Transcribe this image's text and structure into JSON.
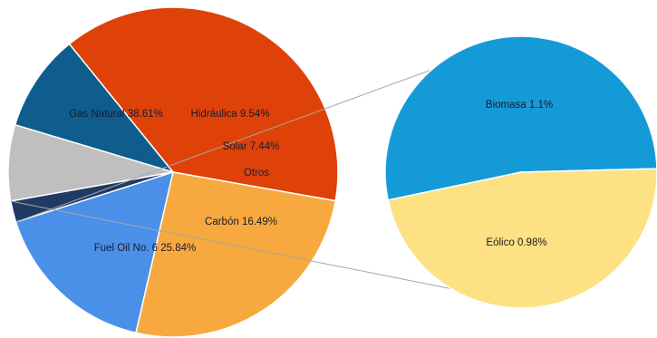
{
  "chart_data": [
    {
      "type": "pie",
      "title": "",
      "slices": [
        {
          "label": "Gas Natural 38.61%",
          "name": "Gas Natural",
          "value": 38.61,
          "color": "#df4208"
        },
        {
          "label": "Hidráulica 9.54%",
          "name": "Hidráulica",
          "value": 9.54,
          "color": "#0f5d8c"
        },
        {
          "label": "Solar 7.44%",
          "name": "Solar",
          "value": 7.44,
          "color": "#bfbfbf"
        },
        {
          "label": "Otros",
          "name": "Otros",
          "value": 2.08,
          "color": "#1f3a63"
        },
        {
          "label": "Carbón 16.49%",
          "name": "Carbón",
          "value": 16.49,
          "color": "#4a90e8"
        },
        {
          "label": "Fuel Oil No. 6 25.84%",
          "name": "Fuel Oil No. 6",
          "value": 25.84,
          "color": "#f7a93f"
        }
      ]
    },
    {
      "type": "pie",
      "title": "",
      "breakdown_of": "Otros",
      "slices": [
        {
          "label": "Biomasa 1.1%",
          "name": "Biomasa",
          "value": 1.1,
          "color": "#159ad8"
        },
        {
          "label": "Eólico 0.98%",
          "name": "Eólico",
          "value": 0.98,
          "color": "#fde183"
        }
      ]
    }
  ]
}
